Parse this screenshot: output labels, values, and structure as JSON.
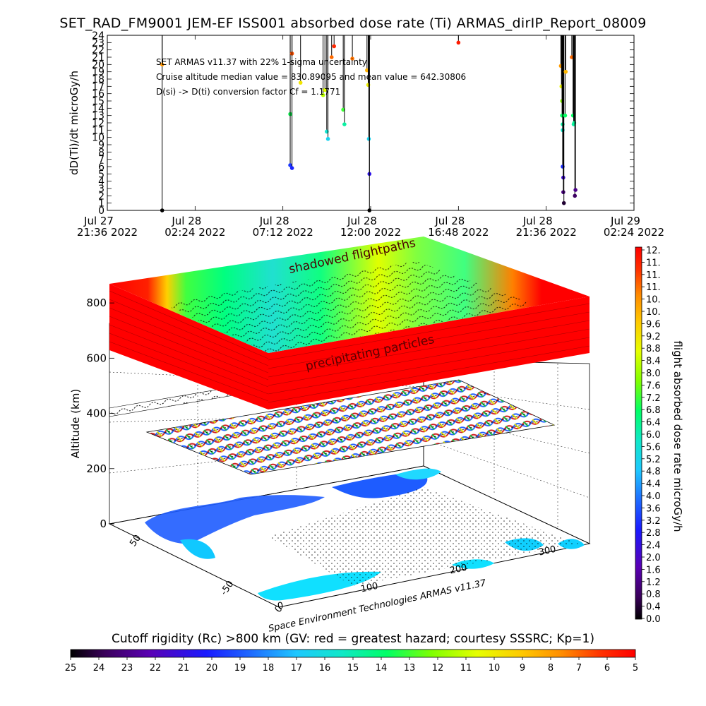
{
  "title": "SET_RAD_FM9001  JEM-EF ISS001 absorbed dose rate (Ti) ARMAS_dirIP_Report_08009",
  "colors": {
    "rainbow": [
      "#000000",
      "#3a005a",
      "#5a00b4",
      "#1a1aff",
      "#1e6bff",
      "#1ec8ff",
      "#10e8c8",
      "#00ff66",
      "#80ff00",
      "#e6ff00",
      "#ffc800",
      "#ff8c00",
      "#ff3000",
      "#ff0000"
    ]
  },
  "chart_data": [
    {
      "type": "scatter",
      "ylabel": "dD(Ti)/dt microGy/h",
      "ylim": [
        0,
        24
      ],
      "yticks": [
        0,
        1,
        2,
        3,
        4,
        5,
        6,
        7,
        8,
        9,
        10,
        11,
        12,
        13,
        14,
        15,
        16,
        17,
        18,
        19,
        20,
        21,
        22,
        23,
        24
      ],
      "x_ticks": [
        {
          "top": "Jul 27",
          "bottom": "21:36 2022"
        },
        {
          "top": "Jul 28",
          "bottom": "02:24 2022"
        },
        {
          "top": "Jul 28",
          "bottom": "07:12 2022"
        },
        {
          "top": "Jul 28",
          "bottom": "12:00 2022"
        },
        {
          "top": "Jul 28",
          "bottom": "16:48 2022"
        },
        {
          "top": "Jul 28",
          "bottom": "21:36 2022"
        },
        {
          "top": "Jul 29",
          "bottom": "02:24 2022"
        }
      ],
      "annotations": [
        "SET ARMAS v11.37 with 22% 1-sigma uncertainty",
        "Cruise altitude median value = 830.89095 and mean value = 642.30806",
        "D(si) -> D(ti) conversion factor Cf = 1.1771"
      ],
      "points": [
        {
          "x": "2022-07-28T00:36",
          "y": 0.0
        },
        {
          "x": "2022-07-28T00:36",
          "y": 20.0
        },
        {
          "x": "2022-07-28T07:36",
          "y": 13.2
        },
        {
          "x": "2022-07-28T07:36",
          "y": 6.2
        },
        {
          "x": "2022-07-28T07:42",
          "y": 21.5
        },
        {
          "x": "2022-07-28T07:42",
          "y": 5.8
        },
        {
          "x": "2022-07-28T08:10",
          "y": 17.5
        },
        {
          "x": "2022-07-28T09:24",
          "y": 15.8
        },
        {
          "x": "2022-07-28T09:30",
          "y": 16.5
        },
        {
          "x": "2022-07-28T09:36",
          "y": 10.8
        },
        {
          "x": "2022-07-28T09:40",
          "y": 9.8
        },
        {
          "x": "2022-07-28T09:52",
          "y": 21.0
        },
        {
          "x": "2022-07-28T10:00",
          "y": 22.5
        },
        {
          "x": "2022-07-28T10:30",
          "y": 13.8
        },
        {
          "x": "2022-07-28T10:34",
          "y": 11.8
        },
        {
          "x": "2022-07-28T11:00",
          "y": 20.8
        },
        {
          "x": "2022-07-28T11:48",
          "y": 19.2
        },
        {
          "x": "2022-07-28T11:52",
          "y": 17.2
        },
        {
          "x": "2022-07-28T11:54",
          "y": 9.8
        },
        {
          "x": "2022-07-28T11:56",
          "y": 5.0
        },
        {
          "x": "2022-07-28T11:56",
          "y": 0.0
        },
        {
          "x": "2022-07-28T16:48",
          "y": 23.0
        },
        {
          "x": "2022-07-28T22:24",
          "y": 19.8
        },
        {
          "x": "2022-07-28T22:26",
          "y": 17.0
        },
        {
          "x": "2022-07-28T22:28",
          "y": 15.0
        },
        {
          "x": "2022-07-28T22:28",
          "y": 13.0
        },
        {
          "x": "2022-07-28T22:30",
          "y": 11.8
        },
        {
          "x": "2022-07-28T22:30",
          "y": 11.0
        },
        {
          "x": "2022-07-28T22:30",
          "y": 6.0
        },
        {
          "x": "2022-07-28T22:32",
          "y": 4.5
        },
        {
          "x": "2022-07-28T22:32",
          "y": 2.5
        },
        {
          "x": "2022-07-28T22:34",
          "y": 1.0
        },
        {
          "x": "2022-07-28T22:38",
          "y": 13.0
        },
        {
          "x": "2022-07-28T22:40",
          "y": 19.0
        },
        {
          "x": "2022-07-28T23:00",
          "y": 21.0
        },
        {
          "x": "2022-07-28T23:04",
          "y": 13.0
        },
        {
          "x": "2022-07-28T23:06",
          "y": 11.8
        },
        {
          "x": "2022-07-28T23:08",
          "y": 12.0
        },
        {
          "x": "2022-07-28T23:10",
          "y": 2.0
        },
        {
          "x": "2022-07-28T23:12",
          "y": 2.8
        }
      ]
    },
    {
      "type": "heatmap",
      "zlabel": "Altitude (km)",
      "zticks": [
        0,
        200,
        400,
        600,
        800
      ],
      "lat_ticks": [
        0,
        -50,
        50
      ],
      "lon_ticks": [
        0,
        100,
        200,
        300
      ],
      "layer_labels": [
        "shadowed flightpaths",
        "precipitating particles"
      ],
      "credit": "Space Environment Technologies ARMAS v11.37"
    },
    {
      "type": "heatmap",
      "colorbar_label": "flight absorbed dose rate microGy/h",
      "colorbar_ticks": [
        "12.",
        "11.",
        "11.",
        "11.",
        "10.",
        "10.",
        "9.6",
        "9.2",
        "8.8",
        "8.4",
        "8.0",
        "7.6",
        "7.2",
        "6.8",
        "6.4",
        "6.0",
        "5.6",
        "5.2",
        "4.8",
        "4.4",
        "4.0",
        "3.6",
        "3.2",
        "2.8",
        "2.4",
        "2.0",
        "1.6",
        "1.2",
        "0.8",
        "0.4",
        "0.0"
      ]
    },
    {
      "type": "heatmap",
      "colorbar_label": "Cutoff rigidity (Rc) >800 km (GV: red = greatest hazard; courtesy SSSRC; Kp=1)",
      "colorbar_ticks": [
        "25",
        "24",
        "23",
        "22",
        "21",
        "20",
        "19",
        "18",
        "17",
        "16",
        "15",
        "14",
        "13",
        "12",
        "11",
        "10",
        "9",
        "8",
        "7",
        "6",
        "5"
      ]
    }
  ]
}
